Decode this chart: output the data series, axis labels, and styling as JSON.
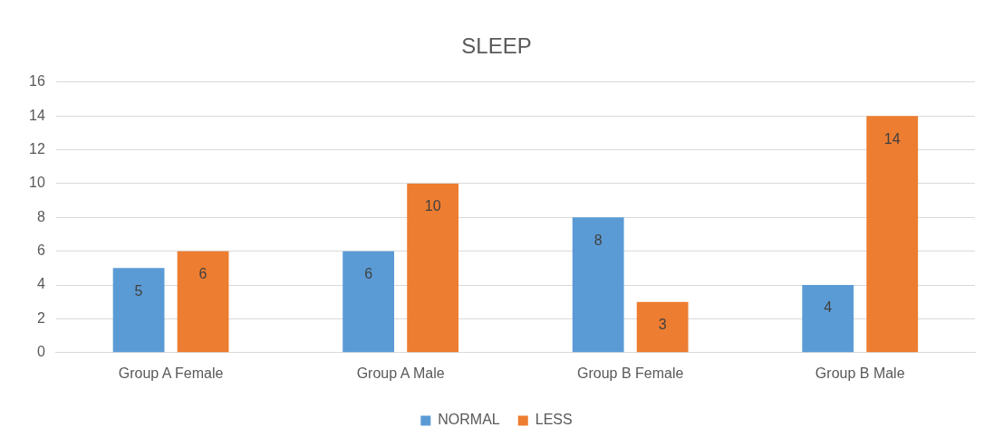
{
  "chart_data": {
    "type": "bar",
    "title": "SLEEP",
    "categories": [
      "Group A Female",
      "Group A Male",
      "Group B Female",
      "Group B Male"
    ],
    "series": [
      {
        "name": "NORMAL",
        "color": "#5b9bd5",
        "values": [
          5,
          6,
          8,
          4
        ]
      },
      {
        "name": "LESS",
        "color": "#ed7d31",
        "values": [
          6,
          10,
          3,
          14
        ]
      }
    ],
    "ylim": [
      0,
      16
    ],
    "yticks": [
      0,
      2,
      4,
      6,
      8,
      10,
      12,
      14,
      16
    ],
    "grid": "y",
    "legend": "bottom",
    "data_labels": true
  }
}
